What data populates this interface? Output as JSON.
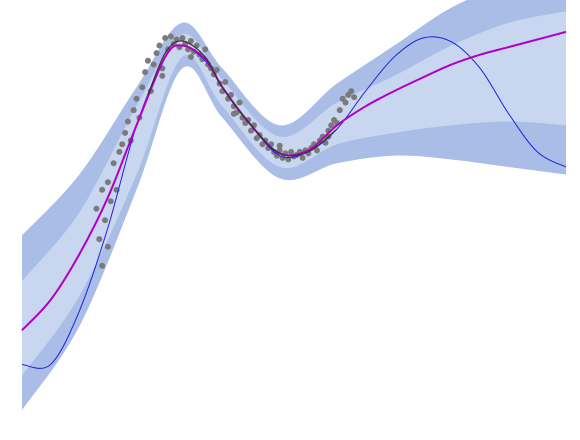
{
  "chart_data": {
    "type": "line",
    "grid": false,
    "axes_visible": false,
    "xlim": [
      -3.5,
      6.0
    ],
    "ylim": [
      -3.2,
      2.2
    ],
    "colors": {
      "band_outer": "#a9bde6",
      "band_inner": "#c8d6f0",
      "true_function": "#1f1fe0",
      "posterior_mean": "#b000c8",
      "data_fit": "#333333",
      "observations": "#7a7a7a"
    },
    "series": [
      {
        "role": "band_outer",
        "x": [
          -3.5,
          -2.5,
          -1.5,
          -0.7,
          0.0,
          1.0,
          2.0,
          3.0,
          4.0,
          5.0,
          6.0
        ],
        "upper": [
          -0.9,
          -0.1,
          1.05,
          1.9,
          1.3,
          0.55,
          1.1,
          1.6,
          2.1,
          2.4,
          2.5
        ],
        "lower": [
          -3.2,
          -2.1,
          -0.3,
          1.3,
          0.65,
          -0.15,
          0.05,
          0.15,
          0.1,
          0.0,
          -0.1
        ]
      },
      {
        "role": "band_inner",
        "x": [
          -3.5,
          -2.5,
          -1.5,
          -0.7,
          0.0,
          1.0,
          2.0,
          3.0,
          4.0,
          5.0,
          6.0
        ],
        "upper": [
          -1.5,
          -0.6,
          0.8,
          1.75,
          1.15,
          0.4,
          0.85,
          1.2,
          1.6,
          1.9,
          2.05
        ],
        "lower": [
          -2.75,
          -1.7,
          -0.1,
          1.45,
          0.8,
          0.0,
          0.3,
          0.45,
          0.55,
          0.6,
          0.55
        ]
      },
      {
        "role": "true_function",
        "x": [
          -3.5,
          -3.0,
          -2.5,
          -2.0,
          -1.5,
          -1.0,
          -0.7,
          -0.3,
          0.0,
          0.5,
          1.0,
          1.5,
          2.0,
          2.5,
          3.0,
          3.5,
          4.0,
          4.5,
          5.0,
          5.5,
          6.0
        ],
        "y": [
          -2.6,
          -2.6,
          -1.9,
          -0.8,
          0.55,
          1.45,
          1.6,
          1.4,
          1.05,
          0.55,
          0.15,
          0.2,
          0.5,
          1.0,
          1.45,
          1.7,
          1.65,
          1.3,
          0.7,
          0.2,
          0.0
        ]
      },
      {
        "role": "posterior_mean",
        "x": [
          -3.5,
          -3.0,
          -2.5,
          -2.0,
          -1.5,
          -1.0,
          -0.7,
          -0.3,
          0.0,
          0.5,
          1.0,
          1.5,
          2.0,
          2.5,
          3.0,
          3.5,
          4.0,
          4.5,
          5.0,
          5.5,
          6.0
        ],
        "y": [
          -2.15,
          -1.75,
          -1.15,
          -0.4,
          0.55,
          1.45,
          1.6,
          1.42,
          1.05,
          0.55,
          0.18,
          0.22,
          0.55,
          0.8,
          1.0,
          1.18,
          1.35,
          1.48,
          1.58,
          1.68,
          1.78
        ]
      },
      {
        "role": "data_fit",
        "x": [
          -1.3,
          -1.0,
          -0.7,
          -0.3,
          0.0,
          0.5,
          1.0,
          1.5,
          2.0
        ],
        "y": [
          0.95,
          1.5,
          1.66,
          1.45,
          1.05,
          0.55,
          0.18,
          0.2,
          0.5
        ]
      }
    ],
    "scatter": {
      "role": "observations",
      "points": [
        [
          -2.2,
          -0.55
        ],
        [
          -2.15,
          -0.95
        ],
        [
          -2.1,
          -1.3
        ],
        [
          -2.1,
          -0.3
        ],
        [
          -2.05,
          -0.7
        ],
        [
          -2.0,
          -0.2
        ],
        [
          -2.0,
          -1.05
        ],
        [
          -1.95,
          -0.45
        ],
        [
          -1.9,
          0.05
        ],
        [
          -1.85,
          -0.3
        ],
        [
          -1.8,
          0.2
        ],
        [
          -1.75,
          0.3
        ],
        [
          -1.7,
          0.45
        ],
        [
          -1.65,
          0.6
        ],
        [
          -1.6,
          0.35
        ],
        [
          -1.55,
          0.75
        ],
        [
          -1.5,
          0.9
        ],
        [
          -1.45,
          0.65
        ],
        [
          -1.4,
          1.05
        ],
        [
          -1.35,
          1.25
        ],
        [
          -1.3,
          1.4
        ],
        [
          -1.25,
          1.0
        ],
        [
          -1.2,
          1.35
        ],
        [
          -1.15,
          1.5
        ],
        [
          -1.1,
          1.6
        ],
        [
          -1.05,
          1.3
        ],
        [
          -1.0,
          1.7
        ],
        [
          -0.95,
          1.55
        ],
        [
          -0.9,
          1.72
        ],
        [
          -0.85,
          1.62
        ],
        [
          -0.8,
          1.68
        ],
        [
          -0.75,
          1.58
        ],
        [
          -0.7,
          1.7
        ],
        [
          -0.65,
          1.62
        ],
        [
          -0.6,
          1.55
        ],
        [
          -0.55,
          1.66
        ],
        [
          -0.5,
          1.52
        ],
        [
          -0.45,
          1.6
        ],
        [
          -0.4,
          1.48
        ],
        [
          -0.35,
          1.42
        ],
        [
          -0.3,
          1.55
        ],
        [
          -0.25,
          1.35
        ],
        [
          -0.2,
          1.3
        ],
        [
          -0.15,
          1.22
        ],
        [
          -0.1,
          1.28
        ],
        [
          -0.05,
          1.1
        ],
        [
          0.0,
          1.0
        ],
        [
          0.05,
          1.12
        ],
        [
          0.1,
          0.9
        ],
        [
          0.15,
          0.95
        ],
        [
          0.2,
          0.8
        ],
        [
          0.25,
          0.72
        ],
        [
          0.3,
          0.85
        ],
        [
          0.35,
          0.65
        ],
        [
          0.4,
          0.58
        ],
        [
          0.45,
          0.62
        ],
        [
          0.5,
          0.48
        ],
        [
          0.55,
          0.55
        ],
        [
          0.6,
          0.38
        ],
        [
          0.65,
          0.42
        ],
        [
          0.7,
          0.3
        ],
        [
          0.75,
          0.35
        ],
        [
          0.8,
          0.25
        ],
        [
          0.85,
          0.3
        ],
        [
          0.9,
          0.2
        ],
        [
          0.95,
          0.15
        ],
        [
          1.0,
          0.22
        ],
        [
          1.05,
          0.12
        ],
        [
          1.1,
          0.18
        ],
        [
          1.15,
          0.1
        ],
        [
          1.2,
          0.2
        ],
        [
          1.25,
          0.14
        ],
        [
          1.3,
          0.16
        ],
        [
          1.35,
          0.2
        ],
        [
          1.4,
          0.12
        ],
        [
          1.45,
          0.22
        ],
        [
          1.5,
          0.18
        ],
        [
          1.55,
          0.25
        ],
        [
          1.6,
          0.3
        ],
        [
          1.65,
          0.22
        ],
        [
          1.7,
          0.35
        ],
        [
          1.75,
          0.4
        ],
        [
          1.8,
          0.32
        ],
        [
          1.85,
          0.48
        ],
        [
          1.9,
          0.55
        ],
        [
          1.95,
          0.62
        ],
        [
          2.0,
          0.58
        ],
        [
          2.05,
          0.75
        ],
        [
          2.1,
          0.9
        ],
        [
          2.15,
          0.85
        ],
        [
          2.2,
          0.95
        ],
        [
          2.25,
          1.0
        ],
        [
          2.3,
          0.92
        ],
        [
          -1.05,
          1.2
        ],
        [
          -0.55,
          1.45
        ],
        [
          0.2,
          0.7
        ],
        [
          1.0,
          0.28
        ],
        [
          1.85,
          0.4
        ]
      ]
    }
  }
}
